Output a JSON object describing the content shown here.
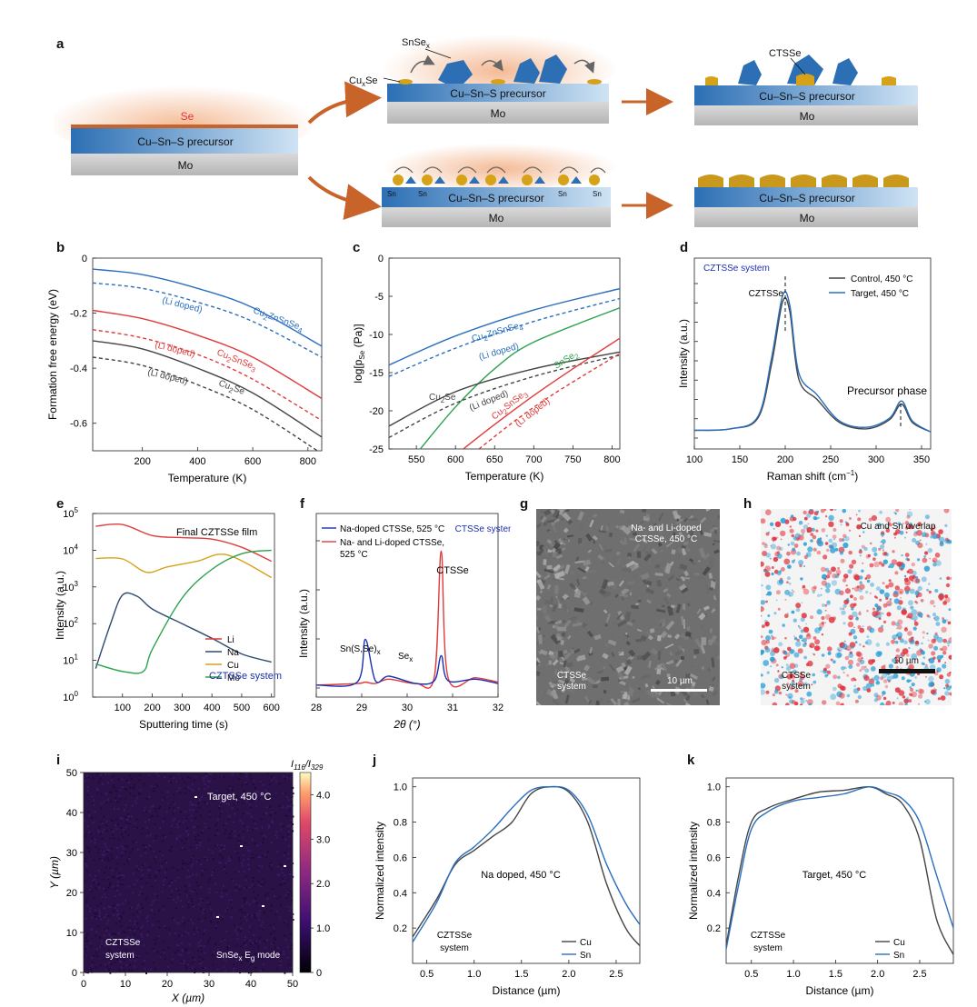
{
  "labels": [
    "a",
    "b",
    "c",
    "d",
    "e",
    "f",
    "g",
    "h",
    "i",
    "j",
    "k"
  ],
  "colors": {
    "blue": "#2a6ebd",
    "red": "#e03a3a",
    "black": "#444444",
    "green": "#2aa24a",
    "gold": "#d6a21a",
    "orange": "#c8642a",
    "navy": "#1a2fb0"
  },
  "panel_a": {
    "se_label": "Se",
    "precursor": "Cu–Sn–S precursor",
    "mo": "Mo",
    "snsex": "SnSe",
    "snsex_sub": "x",
    "cuxse": "Cu",
    "cuxse_sub": "x",
    "cuxse_tail": "Se",
    "ctsse": "CTSSe",
    "sn": "Sn"
  },
  "panel_b": {
    "ylabel": "Formation free energy (eV)",
    "xlabel": "Temperature (K)",
    "yticks": [
      "0",
      "-0.2",
      "-0.4",
      "-0.6"
    ],
    "xticks": [
      "200",
      "400",
      "600",
      "800"
    ],
    "ann_czts": "Cu",
    "ann_czts_tail": "ZnSnSe",
    "ann_cts": "Cu",
    "ann_cts_tail": "SnSe",
    "ann_cuse": "Cu",
    "ann_cuse_tail": "Se",
    "li_doped": "(Li doped)"
  },
  "panel_c": {
    "ylabel": "log[p",
    "ylabel_sub": "Se",
    "ylabel_tail": " (Pa)]",
    "xlabel": "Temperature (K)",
    "yticks": [
      "0",
      "-5",
      "-10",
      "-15",
      "-20",
      "-25"
    ],
    "xticks": [
      "550",
      "600",
      "650",
      "700",
      "750",
      "800"
    ],
    "ann_czts": "Cu",
    "ann_czts_tail": "ZnSnSe",
    "ann_snse": "SnSe",
    "ann_cuse": "Cu",
    "ann_cuse_tail": "Se",
    "ann_cts": "Cu",
    "ann_cts_tail": "SnSe",
    "li_doped": "(Li doped)"
  },
  "panel_d": {
    "system": "CZTSSe system",
    "ylabel": "Intensity (a.u.)",
    "xlabel": "Raman shift (cm",
    "xlabel_sup": "−1",
    "xlabel_tail": ")",
    "xticks": [
      "100",
      "150",
      "200",
      "250",
      "300",
      "350"
    ],
    "legend_control": "Control, 450 °C",
    "legend_target": "Target, 450 °C",
    "ann_czts": "CZTSSe",
    "ann_precursor": "Precursor phase"
  },
  "panel_e": {
    "title": "Final CZTSSe film",
    "ylabel": "Intensity (a.u.)",
    "xlabel": "Sputtering time (s)",
    "yticks": [
      "10",
      "10",
      "10",
      "10",
      "10",
      "10"
    ],
    "yexp": [
      "0",
      "1",
      "2",
      "3",
      "4",
      "5"
    ],
    "xticks": [
      "100",
      "200",
      "300",
      "400",
      "500",
      "600"
    ],
    "legend": [
      "Li",
      "Na",
      "Cu",
      "Mo"
    ],
    "system": "CZTSSe system"
  },
  "panel_f": {
    "legend_na": "Na-doped CTSSe, 525 °C",
    "legend_nali": "Na- and Li-doped CTSSe,",
    "legend_nali2": "525 °C",
    "system": "CTSSe system",
    "ylabel": "Intensity (a.u.)",
    "xlabel": "2θ (°)",
    "xticks": [
      "28",
      "29",
      "30",
      "31",
      "32"
    ],
    "ann_snsse": "Sn(S,Se)",
    "ann_snsse_sub": "x",
    "ann_sex": "Se",
    "ann_sex_sub": "x",
    "ann_ctsse": "CTSSe"
  },
  "panel_g": {
    "caption": "Na- and Li-doped CTSSe, 450 °C",
    "system": "CTSSe system",
    "scale": "10 µm"
  },
  "panel_h": {
    "caption": "Cu and Sn overlap",
    "system": "CTSSe system",
    "scale": "10 µm"
  },
  "panel_i": {
    "caption": "Target, 450 °C",
    "system": "CZTSSe system",
    "mode": "SnSe",
    "mode_tail": " E",
    "mode_sub": "g",
    "mode_end": " mode",
    "ylabel": "Y (µm)",
    "xlabel": "X (µm)",
    "xticks": [
      "0",
      "10",
      "20",
      "30",
      "40",
      "50"
    ],
    "yticks": [
      "0",
      "10",
      "20",
      "30",
      "40",
      "50"
    ],
    "cbar_title": "I",
    "cbar_sub1": "116",
    "cbar_mid": "/I",
    "cbar_sub2": "329",
    "cbar_ticks": [
      "0",
      "1.0",
      "2.0",
      "3.0",
      "4.0"
    ]
  },
  "panel_j": {
    "caption": "Na doped, 450 °C",
    "system": "CZTSSe system",
    "ylabel": "Normalized intensity",
    "xlabel": "Distance (µm)",
    "xticks": [
      "0.5",
      "1.0",
      "1.5",
      "2.0",
      "2.5"
    ],
    "yticks": [
      "0.2",
      "0.4",
      "0.6",
      "0.8",
      "1.0"
    ],
    "legend": [
      "Cu",
      "Sn"
    ]
  },
  "panel_k": {
    "caption": "Target, 450 °C",
    "system": "CZTSSe system",
    "ylabel": "Normalized intensity",
    "xlabel": "Distance (µm)",
    "xticks": [
      "0.5",
      "1.0",
      "1.5",
      "2.0",
      "2.5"
    ],
    "yticks": [
      "0.2",
      "0.4",
      "0.6",
      "0.8",
      "1.0"
    ],
    "legend": [
      "Cu",
      "Sn"
    ]
  },
  "chart_data": [
    {
      "type": "line",
      "panel": "b",
      "xlabel": "Temperature (K)",
      "ylabel": "Formation free energy (eV)",
      "xlim": [
        20,
        850
      ],
      "ylim": [
        -0.7,
        0
      ],
      "series": [
        {
          "name": "Cu2ZnSnSe4",
          "x": [
            20,
            200,
            400,
            600,
            850
          ],
          "values": [
            -0.04,
            -0.06,
            -0.11,
            -0.18,
            -0.32
          ]
        },
        {
          "name": "(Li doped)",
          "x": [
            20,
            200,
            400,
            600,
            850
          ],
          "values": [
            -0.09,
            -0.11,
            -0.16,
            -0.23,
            -0.36
          ]
        },
        {
          "name": "Cu2SnSe3",
          "x": [
            20,
            200,
            400,
            600,
            850
          ],
          "values": [
            -0.19,
            -0.22,
            -0.28,
            -0.36,
            -0.51
          ]
        },
        {
          "name": "(Li doped)",
          "x": [
            20,
            200,
            400,
            600,
            850
          ],
          "values": [
            -0.26,
            -0.29,
            -0.35,
            -0.44,
            -0.59
          ]
        },
        {
          "name": "Cu2Se",
          "x": [
            20,
            200,
            400,
            600,
            850
          ],
          "values": [
            -0.3,
            -0.33,
            -0.4,
            -0.49,
            -0.65
          ]
        },
        {
          "name": "(Li doped)",
          "x": [
            20,
            200,
            400,
            600,
            850
          ],
          "values": [
            -0.36,
            -0.39,
            -0.46,
            -0.55,
            -0.71
          ]
        }
      ]
    },
    {
      "type": "line",
      "panel": "c",
      "xlabel": "Temperature (K)",
      "ylabel": "log[pSe (Pa)]",
      "xlim": [
        515,
        810
      ],
      "ylim": [
        -25,
        0
      ],
      "series": [
        {
          "name": "Cu2ZnSnSe4",
          "x": [
            515,
            600,
            700,
            810
          ],
          "values": [
            -14,
            -10.2,
            -6.8,
            -4
          ]
        },
        {
          "name": "(Li doped)",
          "x": [
            515,
            600,
            700,
            810
          ],
          "values": [
            -15.5,
            -11.8,
            -8.3,
            -5.3
          ]
        },
        {
          "name": "SnSe2",
          "x": [
            555,
            600,
            650,
            700,
            810
          ],
          "values": [
            -25,
            -19.5,
            -14.5,
            -11,
            -6.5
          ]
        },
        {
          "name": "Cu2Se",
          "x": [
            515,
            600,
            700,
            810
          ],
          "values": [
            -22,
            -17.5,
            -14.5,
            -12.3
          ]
        },
        {
          "name": "(Li doped)",
          "x": [
            515,
            600,
            700,
            810
          ],
          "values": [
            -23.5,
            -19,
            -15.5,
            -12.7
          ]
        },
        {
          "name": "Cu2SnSe3",
          "x": [
            610,
            650,
            700,
            750,
            810
          ],
          "values": [
            -25,
            -21.8,
            -18,
            -14.5,
            -10.5
          ]
        },
        {
          "name": "(Li doped)",
          "x": [
            630,
            680,
            730,
            810
          ],
          "values": [
            -25,
            -21,
            -17.5,
            -12.5
          ]
        }
      ]
    },
    {
      "type": "line",
      "panel": "d",
      "xlabel": "Raman shift (cm−1)",
      "ylabel": "Intensity (a.u.)",
      "xlim": [
        100,
        360
      ],
      "series": [
        {
          "name": "Control, 450 °C",
          "x": [
            100,
            140,
            170,
            185,
            197,
            205,
            215,
            235,
            260,
            290,
            315,
            328,
            340,
            360
          ],
          "values": [
            0.05,
            0.06,
            0.13,
            0.48,
            0.88,
            0.82,
            0.38,
            0.25,
            0.1,
            0.06,
            0.12,
            0.22,
            0.1,
            0.04
          ]
        },
        {
          "name": "Target, 450 °C",
          "x": [
            100,
            140,
            170,
            185,
            197,
            205,
            215,
            235,
            260,
            290,
            315,
            328,
            340,
            360
          ],
          "values": [
            0.05,
            0.06,
            0.14,
            0.52,
            0.92,
            0.86,
            0.42,
            0.28,
            0.11,
            0.07,
            0.13,
            0.24,
            0.11,
            0.04
          ]
        }
      ]
    },
    {
      "type": "line",
      "panel": "e",
      "xlabel": "Sputtering time (s)",
      "ylabel": "Intensity (a.u.)",
      "xlim": [
        0,
        610
      ],
      "ylim": [
        1,
        100000
      ],
      "yscale": "log",
      "series": [
        {
          "name": "Li",
          "x": [
            10,
            100,
            200,
            300,
            400,
            500,
            600
          ],
          "values": [
            45000,
            50000,
            25000,
            22000,
            20000,
            12000,
            5000
          ]
        },
        {
          "name": "Na",
          "x": [
            10,
            60,
            100,
            150,
            200,
            300,
            400,
            500,
            600
          ],
          "values": [
            6,
            100,
            600,
            550,
            250,
            100,
            40,
            15,
            9
          ]
        },
        {
          "name": "Cu",
          "x": [
            10,
            100,
            180,
            250,
            350,
            450,
            600
          ],
          "values": [
            6000,
            5800,
            2500,
            3500,
            5000,
            7500,
            1800
          ]
        },
        {
          "name": "Mo",
          "x": [
            10,
            100,
            170,
            200,
            300,
            400,
            500,
            600
          ],
          "values": [
            8,
            5,
            5,
            20,
            500,
            3000,
            8000,
            10000
          ]
        }
      ]
    },
    {
      "type": "line",
      "panel": "f",
      "xlabel": "2θ (°)",
      "ylabel": "Intensity (a.u.)",
      "xlim": [
        28,
        32
      ],
      "series": [
        {
          "name": "Na-doped CTSSe, 525 °C",
          "x": [
            28,
            28.9,
            29.08,
            29.3,
            29.6,
            30.2,
            30.6,
            30.75,
            30.9,
            31.5,
            32
          ],
          "values": [
            0.02,
            0.04,
            0.33,
            0.05,
            0.08,
            0.03,
            0.05,
            0.22,
            0.05,
            0.06,
            0.03
          ]
        },
        {
          "name": "Na- and Li-doped CTSSe, 525 °C",
          "x": [
            28,
            28.9,
            29.08,
            29.3,
            29.6,
            30.2,
            30.6,
            30.75,
            30.9,
            31.5,
            32
          ],
          "values": [
            0.02,
            0.03,
            0.04,
            0.03,
            0.06,
            0.03,
            0.08,
            0.93,
            0.07,
            0.07,
            0.04
          ]
        }
      ]
    },
    {
      "type": "line",
      "panel": "j",
      "xlabel": "Distance (µm)",
      "ylabel": "Normalized intensity",
      "xlim": [
        0.35,
        2.75
      ],
      "ylim": [
        0,
        1.05
      ],
      "series": [
        {
          "name": "Cu",
          "x": [
            0.35,
            0.6,
            0.8,
            1.0,
            1.2,
            1.4,
            1.6,
            1.8,
            2.0,
            2.2,
            2.4,
            2.6,
            2.75
          ],
          "values": [
            0.15,
            0.36,
            0.56,
            0.64,
            0.72,
            0.8,
            0.96,
            1.0,
            0.97,
            0.8,
            0.45,
            0.2,
            0.1
          ]
        },
        {
          "name": "Sn",
          "x": [
            0.35,
            0.6,
            0.8,
            1.0,
            1.2,
            1.4,
            1.6,
            1.8,
            2.0,
            2.2,
            2.4,
            2.6,
            2.75
          ],
          "values": [
            0.12,
            0.34,
            0.57,
            0.66,
            0.76,
            0.88,
            0.98,
            1.0,
            0.98,
            0.84,
            0.56,
            0.34,
            0.22
          ]
        }
      ]
    },
    {
      "type": "line",
      "panel": "k",
      "xlabel": "Distance (µm)",
      "ylabel": "Normalized intensity",
      "xlim": [
        0.2,
        2.9
      ],
      "ylim": [
        0,
        1.05
      ],
      "series": [
        {
          "name": "Cu",
          "x": [
            0.2,
            0.35,
            0.5,
            0.7,
            1.0,
            1.3,
            1.6,
            1.9,
            2.1,
            2.3,
            2.5,
            2.7,
            2.9
          ],
          "values": [
            0.1,
            0.5,
            0.8,
            0.88,
            0.93,
            0.97,
            0.98,
            1.0,
            0.96,
            0.9,
            0.7,
            0.25,
            0.05
          ]
        },
        {
          "name": "Sn",
          "x": [
            0.2,
            0.35,
            0.5,
            0.7,
            1.0,
            1.3,
            1.6,
            1.9,
            2.1,
            2.3,
            2.5,
            2.7,
            2.9
          ],
          "values": [
            0.08,
            0.45,
            0.76,
            0.86,
            0.92,
            0.94,
            0.96,
            1.0,
            0.97,
            0.93,
            0.8,
            0.5,
            0.2
          ]
        }
      ]
    }
  ]
}
